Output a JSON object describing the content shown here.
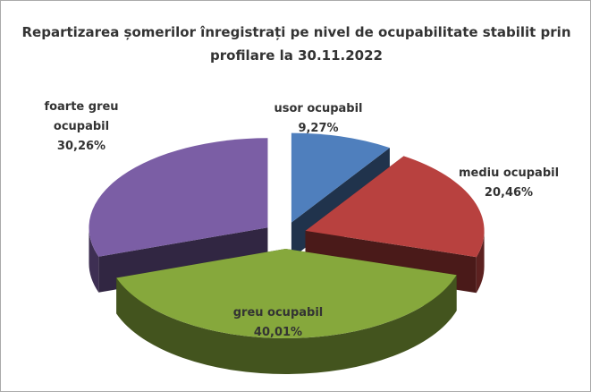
{
  "chart_data": {
    "type": "pie",
    "title": "Repartizarea șomerilor înregistrați pe nivel de ocupabilitate stabilit prin profilare la 30.11.2022",
    "categories": [
      "usor ocupabil",
      "mediu ocupabil",
      "greu ocupabil",
      "foarte greu ocupabil"
    ],
    "values": [
      9.27,
      20.46,
      40.01,
      30.26
    ],
    "value_labels": [
      "9,27%",
      "20,46%",
      "40,01%",
      "30,26%"
    ],
    "colors": [
      "#4f7fbd",
      "#b8413f",
      "#86a83c",
      "#7b5ea5"
    ]
  }
}
